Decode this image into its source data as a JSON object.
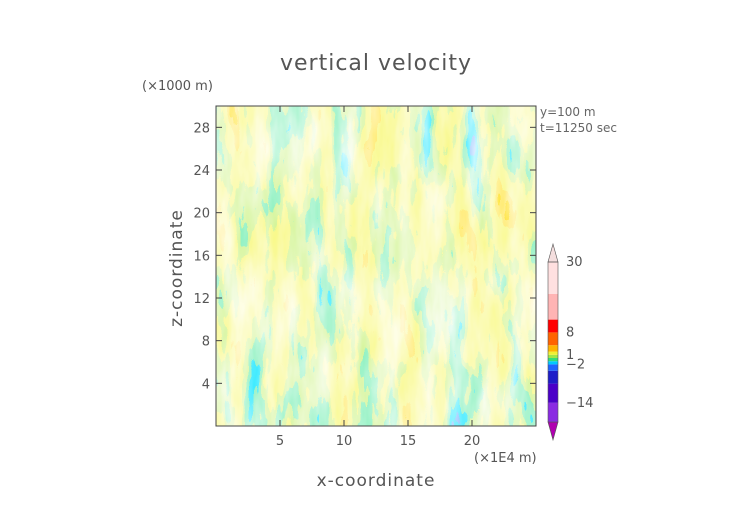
{
  "chart_data": {
    "type": "heatmap",
    "title": "vertical velocity",
    "xlabel": "x-coordinate",
    "ylabel": "z-coordinate",
    "x_scale_note": "(×1E4 m)",
    "y_scale_note": "(×1000 m)",
    "xlim": [
      0,
      25
    ],
    "ylim": [
      0,
      30
    ],
    "x_ticks": [
      "5",
      "10",
      "15",
      "20"
    ],
    "x_tick_values": [
      5,
      10,
      15,
      20
    ],
    "y_ticks": [
      "4",
      "8",
      "12",
      "16",
      "20",
      "24",
      "28"
    ],
    "y_tick_values": [
      4,
      8,
      12,
      16,
      20,
      24,
      28
    ],
    "annotations": [
      "y=100 m",
      "t=11250 sec"
    ],
    "colorbar": {
      "labels": [
        "30",
        "8",
        "1",
        "−2",
        "−14"
      ],
      "label_values": [
        30,
        8,
        1,
        -2,
        -14
      ],
      "levels": [
        -20,
        -14,
        -8,
        -4,
        -2,
        -1,
        0,
        1,
        2,
        4,
        8,
        12,
        20,
        30
      ],
      "colors": [
        "#b000b0",
        "#8a2be2",
        "#4b00c8",
        "#1e1ec8",
        "#1e64ff",
        "#00c8ff",
        "#32dc78",
        "#a0e646",
        "#f0f032",
        "#ffb400",
        "#ff6400",
        "#ff0000",
        "#ffb4b4",
        "#ffe0e0",
        "#f4dede"
      ],
      "extend": "both"
    },
    "grid": false
  }
}
